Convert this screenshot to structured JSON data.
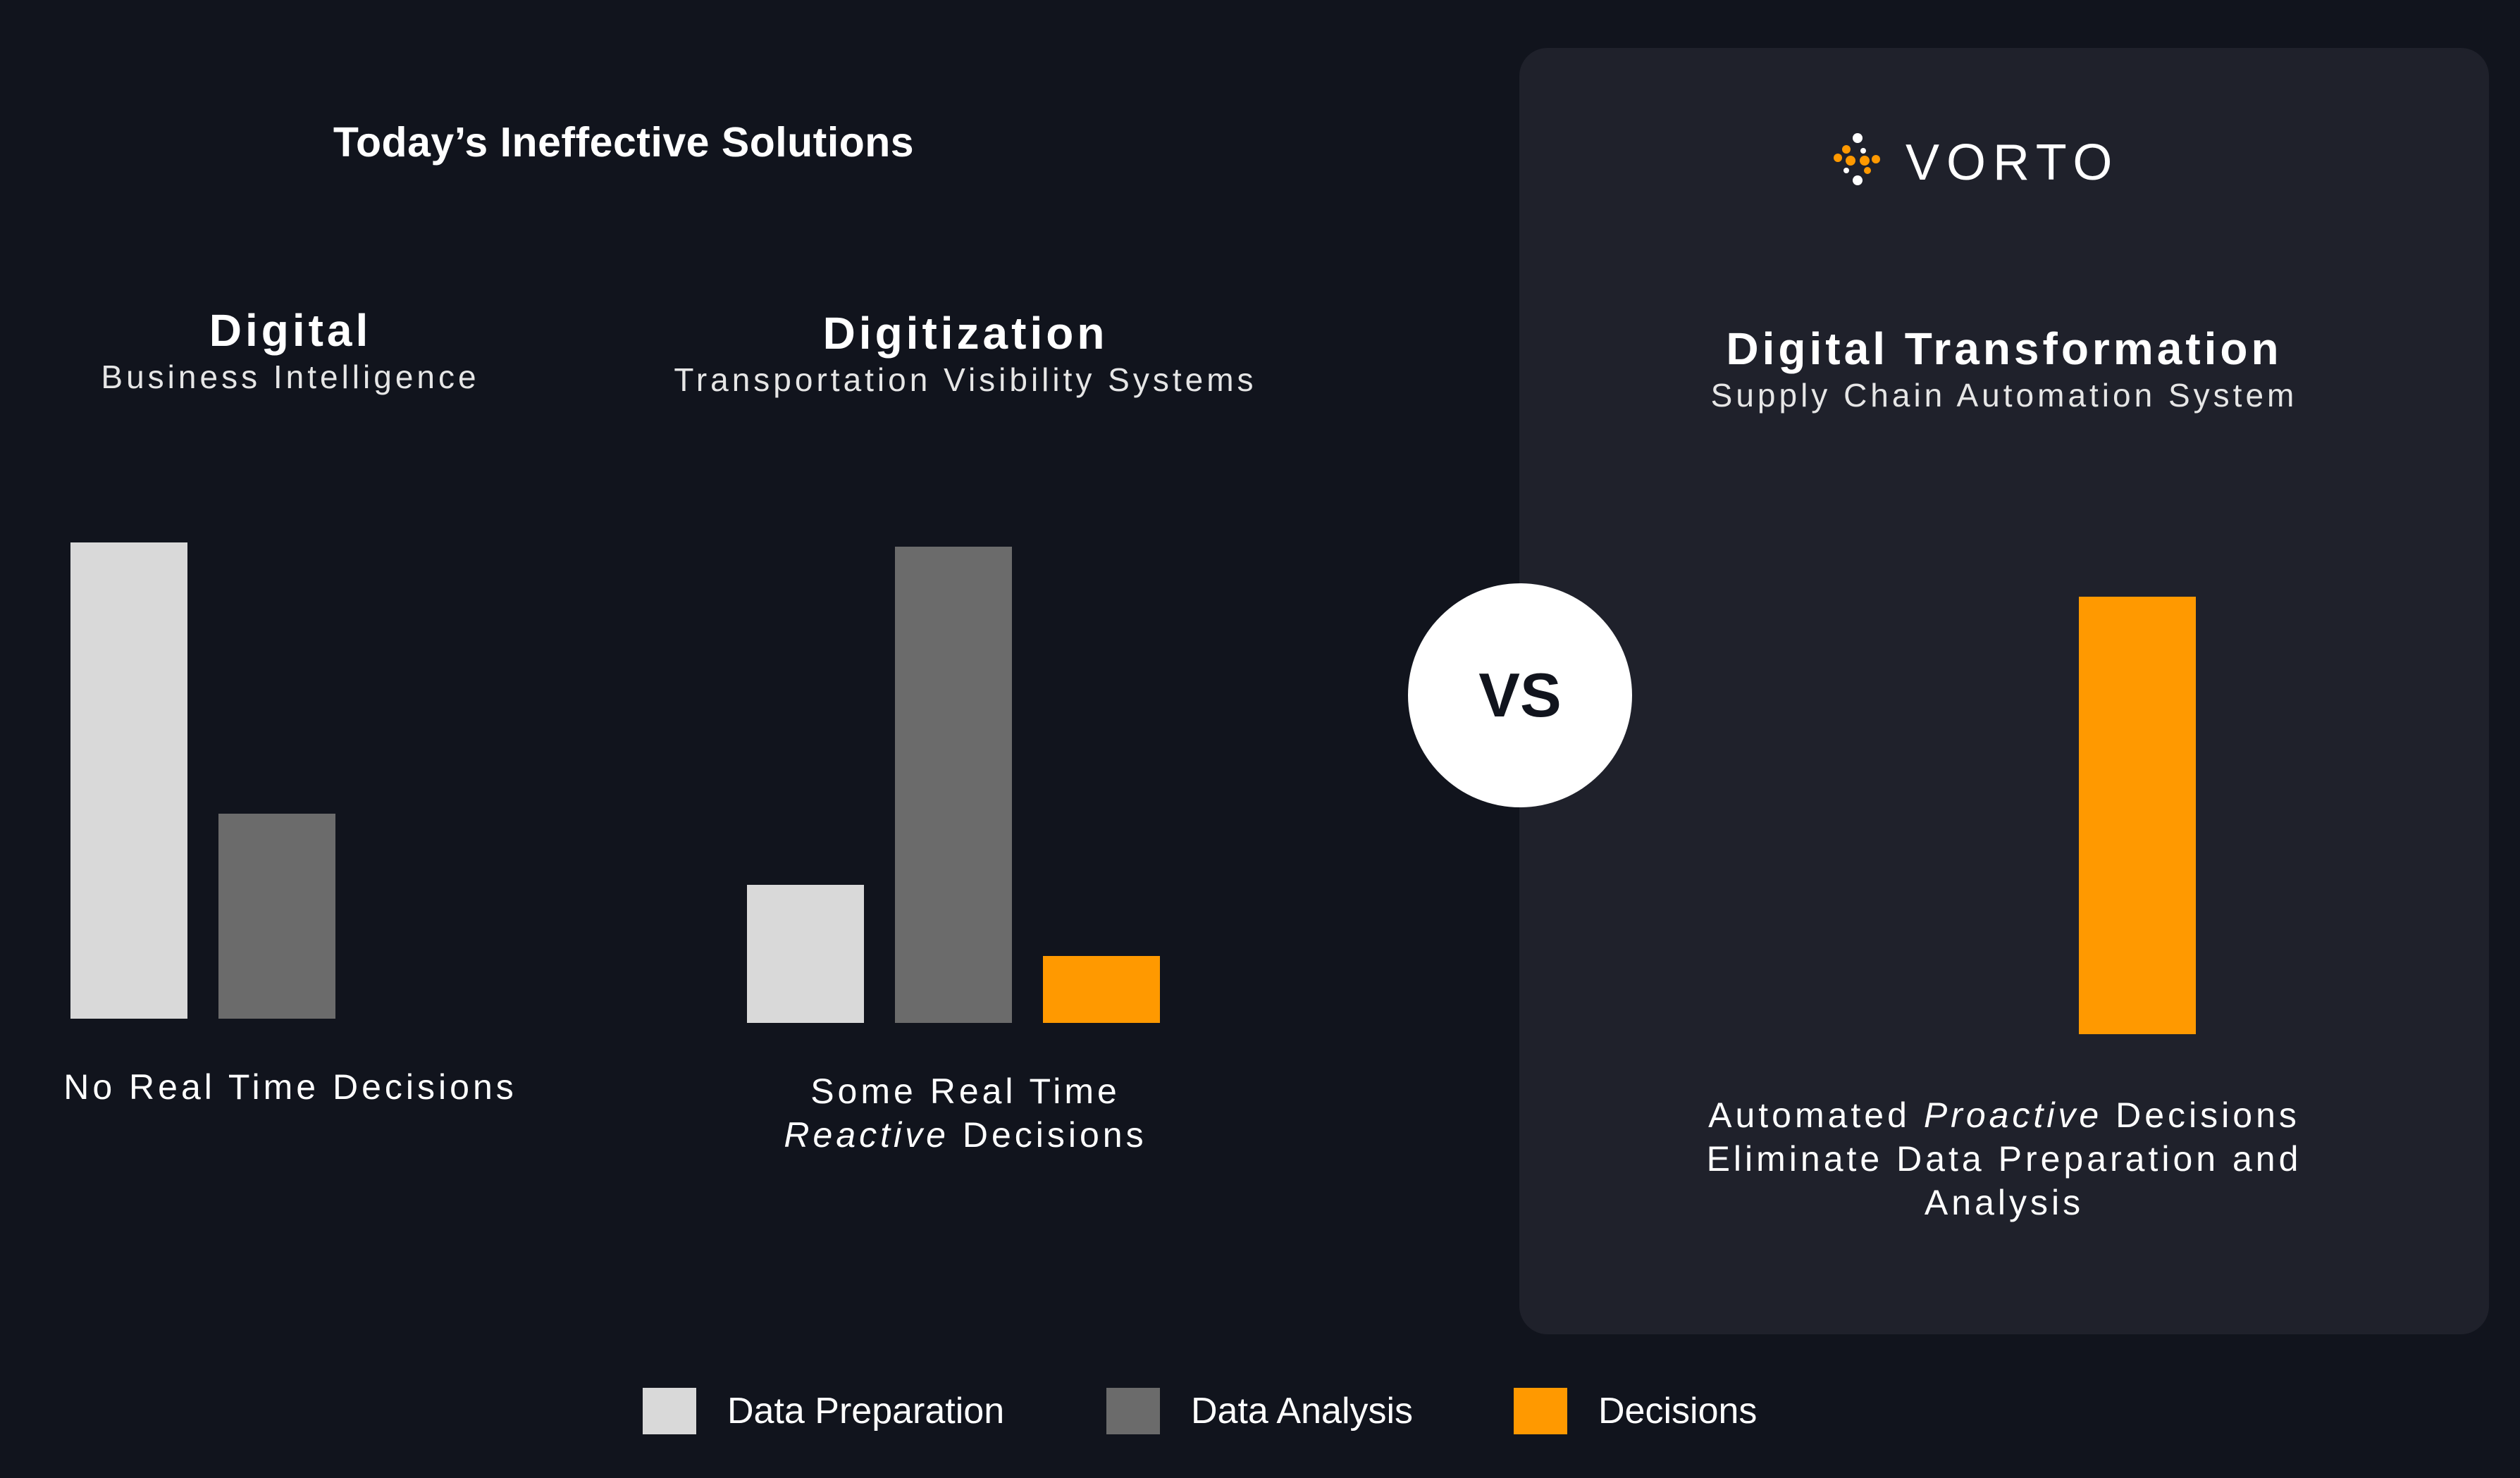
{
  "header": {
    "left_title": "Today’s Ineffective Solutions"
  },
  "brand": {
    "name": "VORTO"
  },
  "colors": {
    "background": "#11141d",
    "panel": "#1f212b",
    "data_preparation": "#d9d9d9",
    "data_analysis": "#6b6b6b",
    "decisions": "#ff9900"
  },
  "panels": [
    {
      "title": "Digital",
      "subtitle": "Business Intelligence",
      "caption_lines": [
        "No Real Time Decisions"
      ]
    },
    {
      "title": "Digitization",
      "subtitle": "Transportation Visibility Systems",
      "caption_line1": "Some Real Time",
      "caption_line2_em": "Reactive",
      "caption_line2_rest": " Decisions"
    },
    {
      "title": "Digital Transformation",
      "subtitle": "Supply Chain Automation System",
      "caption_line1_pre": "Automated ",
      "caption_line1_em": "Proactive",
      "caption_line1_post": " Decisions",
      "caption_line2": "Eliminate Data Preparation and",
      "caption_line3": "Analysis"
    }
  ],
  "vs_label": "VS",
  "chart_data": [
    {
      "type": "bar",
      "categories": [
        "Data Preparation",
        "Data Analysis",
        "Decisions"
      ],
      "values": [
        100,
        43,
        0
      ],
      "ylim": [
        0,
        100
      ]
    },
    {
      "type": "bar",
      "categories": [
        "Data Preparation",
        "Data Analysis",
        "Decisions"
      ],
      "values": [
        29,
        100,
        14
      ],
      "ylim": [
        0,
        100
      ]
    },
    {
      "type": "bar",
      "categories": [
        "Data Preparation",
        "Data Analysis",
        "Decisions"
      ],
      "values": [
        0,
        0,
        95
      ],
      "ylim": [
        0,
        100
      ]
    }
  ],
  "legend": [
    {
      "label": "Data Preparation",
      "color": "#d9d9d9"
    },
    {
      "label": "Data Analysis",
      "color": "#6b6b6b"
    },
    {
      "label": "Decisions",
      "color": "#ff9900"
    }
  ]
}
